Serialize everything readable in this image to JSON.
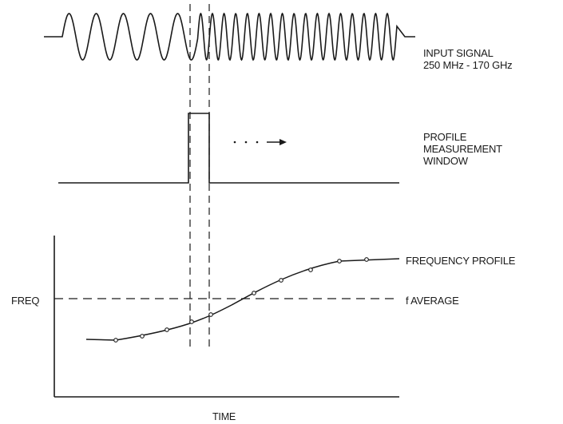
{
  "labels": {
    "input_signal_line1": "INPUT SIGNAL",
    "input_signal_line2": "250 MHz - 170 GHz",
    "profile_window_line1": "PROFILE",
    "profile_window_line2": "MEASUREMENT",
    "profile_window_line3": "WINDOW",
    "frequency_profile": "FREQUENCY PROFILE",
    "f_average": "f AVERAGE",
    "y_axis": "FREQ",
    "x_axis": "TIME"
  },
  "colors": {
    "ink": "#1a1a1a"
  }
}
